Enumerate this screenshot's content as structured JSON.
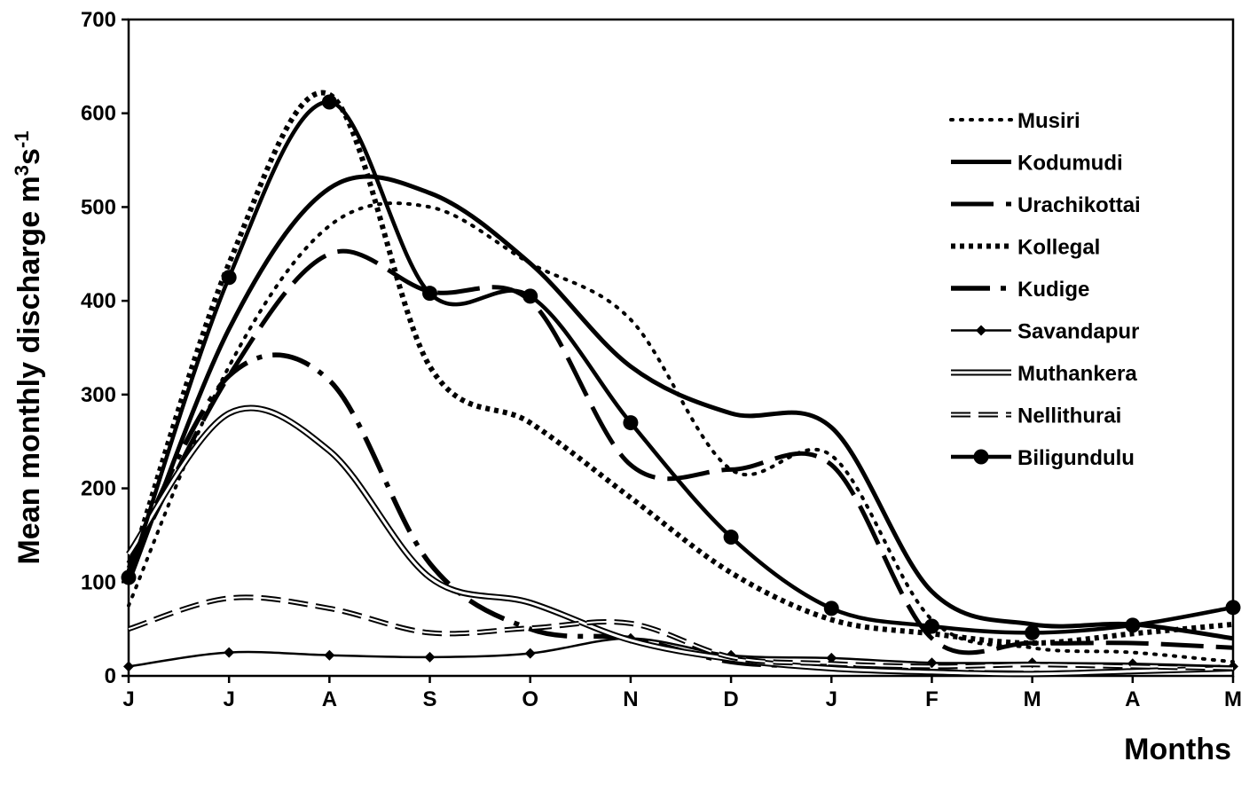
{
  "chart_data": {
    "type": "line",
    "xlabel": "Months",
    "ylabel": "Mean monthly discharge m",
    "ylabel_sup1": "3",
    "ylabel_mid": "s",
    "ylabel_sup2": "-1",
    "categories": [
      "J",
      "J",
      "A",
      "S",
      "O",
      "N",
      "D",
      "J",
      "F",
      "M",
      "A",
      "M"
    ],
    "ylim": [
      0,
      700
    ],
    "yticks": [
      0,
      100,
      200,
      300,
      400,
      500,
      600,
      700
    ],
    "grid": false,
    "legend_position": "top-right",
    "series": [
      {
        "name": "Musiri",
        "values": [
          75,
          330,
          480,
          500,
          440,
          380,
          220,
          235,
          60,
          30,
          25,
          15
        ]
      },
      {
        "name": "Kodumudi",
        "values": [
          100,
          370,
          520,
          515,
          440,
          330,
          280,
          265,
          90,
          55,
          55,
          40
        ]
      },
      {
        "name": "Urachikottai",
        "values": [
          115,
          320,
          450,
          410,
          400,
          225,
          220,
          225,
          40,
          35,
          35,
          30
        ]
      },
      {
        "name": "Kollegal",
        "values": [
          110,
          440,
          620,
          330,
          270,
          190,
          110,
          60,
          45,
          35,
          45,
          55
        ]
      },
      {
        "name": "Kudige",
        "values": [
          120,
          320,
          315,
          120,
          50,
          40,
          15,
          10,
          5,
          3,
          5,
          10
        ]
      },
      {
        "name": "Savandapur",
        "values": [
          10,
          25,
          22,
          20,
          24,
          40,
          22,
          19,
          14,
          14,
          13,
          10
        ]
      },
      {
        "name": "Muthankera",
        "values": [
          130,
          280,
          240,
          105,
          78,
          38,
          18,
          8,
          4,
          2,
          5,
          8
        ]
      },
      {
        "name": "Nellithurai",
        "values": [
          50,
          83,
          72,
          46,
          51,
          56,
          20,
          13,
          10,
          12,
          10,
          8
        ]
      },
      {
        "name": "Biligundulu",
        "values": [
          105,
          425,
          612,
          408,
          405,
          270,
          148,
          72,
          53,
          46,
          54,
          73
        ]
      }
    ]
  }
}
